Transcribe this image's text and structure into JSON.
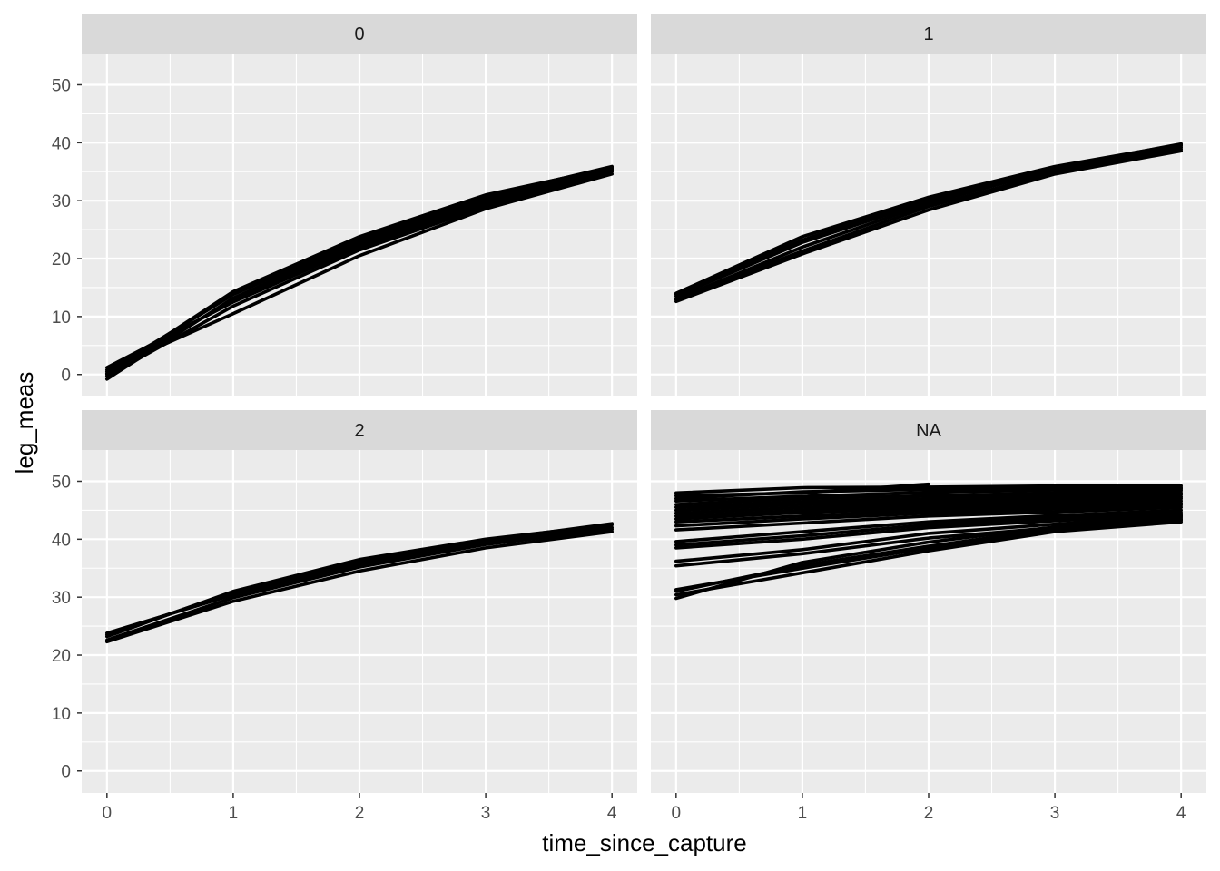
{
  "chart_data": {
    "type": "line",
    "facet_layout": "2x2 grid",
    "xlabel": "time_since_capture",
    "ylabel": "leg_meas",
    "xlim": [
      -0.2,
      4.2
    ],
    "ylim": [
      -3.8,
      55.4
    ],
    "x_ticks": [
      "0",
      "1",
      "2",
      "3",
      "4"
    ],
    "y_ticks": [
      "0",
      "10",
      "20",
      "30",
      "40",
      "50"
    ],
    "grid": true,
    "legend": "none",
    "colors": {
      "panel_background": "#ebebeb",
      "strip_background": "#d9d9d9",
      "grid_line": "#ffffff",
      "series_line": "#000000"
    },
    "facets": [
      {
        "label": "0",
        "series": [
          {
            "x": [
              0,
              1,
              2,
              3,
              4
            ],
            "y": [
              0.0,
              14.3,
              23.8,
              31.0,
              35.7
            ]
          },
          {
            "x": [
              0,
              1,
              2,
              3,
              4
            ],
            "y": [
              -0.8,
              13.2,
              22.9,
              30.2,
              35.4
            ]
          },
          {
            "x": [
              0,
              1,
              2,
              3,
              4
            ],
            "y": [
              1.2,
              12.5,
              22.0,
              29.5,
              35.2
            ]
          },
          {
            "x": [
              0,
              1,
              2,
              3,
              4
            ],
            "y": [
              0.5,
              13.8,
              23.3,
              30.7,
              35.9
            ]
          },
          {
            "x": [
              0,
              1,
              2,
              3,
              4
            ],
            "y": [
              -0.3,
              11.8,
              21.5,
              29.0,
              35.0
            ]
          },
          {
            "x": [
              0,
              1,
              2,
              3,
              4
            ],
            "y": [
              0.8,
              10.5,
              20.5,
              28.6,
              34.6
            ]
          },
          {
            "x": [
              0,
              1,
              2,
              3,
              4
            ],
            "y": [
              0.2,
              12.9,
              22.4,
              29.8,
              35.5
            ]
          }
        ]
      },
      {
        "label": "1",
        "series": [
          {
            "x": [
              0,
              1,
              2,
              3,
              4
            ],
            "y": [
              13.0,
              22.0,
              29.5,
              35.5,
              39.5
            ]
          },
          {
            "x": [
              0,
              1,
              2,
              3,
              4
            ],
            "y": [
              14.0,
              23.8,
              30.6,
              35.9,
              39.7
            ]
          },
          {
            "x": [
              0,
              1,
              2,
              3,
              4
            ],
            "y": [
              12.6,
              20.8,
              28.4,
              34.6,
              38.6
            ]
          },
          {
            "x": [
              0,
              1,
              2,
              3,
              4
            ],
            "y": [
              13.5,
              22.8,
              29.9,
              35.2,
              39.2
            ]
          },
          {
            "x": [
              0,
              1,
              2,
              3,
              4
            ],
            "y": [
              12.9,
              21.3,
              29.0,
              34.9,
              38.9
            ]
          },
          {
            "x": [
              0,
              1,
              2,
              3,
              4
            ],
            "y": [
              13.8,
              23.2,
              30.3,
              35.7,
              39.8
            ]
          }
        ]
      },
      {
        "label": "2",
        "series": [
          {
            "x": [
              0,
              1,
              2,
              3,
              4
            ],
            "y": [
              23.2,
              31.0,
              36.5,
              40.0,
              42.5
            ]
          },
          {
            "x": [
              0,
              1,
              2,
              3,
              4
            ],
            "y": [
              22.3,
              29.3,
              34.5,
              38.5,
              41.3
            ]
          },
          {
            "x": [
              0,
              1,
              2,
              3,
              4
            ],
            "y": [
              23.8,
              30.4,
              35.7,
              39.5,
              42.0
            ]
          },
          {
            "x": [
              0,
              1,
              2,
              3,
              4
            ],
            "y": [
              22.6,
              29.9,
              35.2,
              39.1,
              41.7
            ]
          },
          {
            "x": [
              0,
              1,
              2,
              3,
              4
            ],
            "y": [
              23.5,
              30.8,
              36.1,
              39.8,
              42.7
            ]
          }
        ]
      },
      {
        "label": "NA",
        "series": [
          {
            "x": [
              0,
              1,
              2,
              3,
              4
            ],
            "y": [
              48.0,
              48.9,
              49.0,
              49.2,
              49.2
            ]
          },
          {
            "x": [
              0,
              1,
              2
            ],
            "y": [
              47.5,
              48.0,
              49.5
            ]
          },
          {
            "x": [
              0,
              1,
              2,
              3,
              4
            ],
            "y": [
              47.0,
              48.2,
              48.6,
              48.9,
              48.9
            ]
          },
          {
            "x": [
              0,
              1,
              2,
              3,
              4
            ],
            "y": [
              46.6,
              47.4,
              48.1,
              48.5,
              48.7
            ]
          },
          {
            "x": [
              0,
              1,
              2,
              3,
              4
            ],
            "y": [
              46.0,
              47.0,
              47.5,
              48.0,
              48.4
            ]
          },
          {
            "x": [
              0,
              1,
              2,
              3,
              4
            ],
            "y": [
              45.5,
              46.5,
              47.0,
              47.6,
              48.0
            ]
          },
          {
            "x": [
              0,
              1,
              2,
              3,
              4
            ],
            "y": [
              45.0,
              46.0,
              46.6,
              47.2,
              47.7
            ]
          },
          {
            "x": [
              0,
              1,
              2,
              3,
              4
            ],
            "y": [
              44.5,
              45.5,
              46.2,
              46.9,
              47.3
            ]
          },
          {
            "x": [
              0,
              1,
              2,
              3,
              4
            ],
            "y": [
              44.0,
              45.0,
              45.8,
              46.4,
              47.0
            ]
          },
          {
            "x": [
              0,
              1,
              2,
              3,
              4
            ],
            "y": [
              43.5,
              44.6,
              45.4,
              46.0,
              46.6
            ]
          },
          {
            "x": [
              0,
              1,
              2,
              3,
              4
            ],
            "y": [
              43.0,
              44.0,
              45.0,
              45.6,
              46.2
            ]
          },
          {
            "x": [
              0,
              1,
              2,
              3,
              4
            ],
            "y": [
              42.3,
              43.5,
              44.5,
              45.2,
              45.9
            ]
          },
          {
            "x": [
              0,
              1,
              2,
              3,
              4
            ],
            "y": [
              41.6,
              42.8,
              44.0,
              44.7,
              45.5
            ]
          },
          {
            "x": [
              0,
              1,
              2,
              3,
              4
            ],
            "y": [
              39.6,
              41.3,
              43.0,
              44.1,
              45.0
            ]
          },
          {
            "x": [
              0,
              1,
              2,
              3,
              4
            ],
            "y": [
              39.0,
              40.6,
              42.5,
              43.6,
              44.6
            ]
          },
          {
            "x": [
              0,
              1,
              2,
              3,
              4
            ],
            "y": [
              38.5,
              40.0,
              42.0,
              43.2,
              44.2
            ]
          },
          {
            "x": [
              0,
              1,
              2,
              3,
              4
            ],
            "y": [
              36.2,
              38.2,
              41.0,
              42.6,
              44.0
            ]
          },
          {
            "x": [
              0,
              1,
              2,
              3,
              4
            ],
            "y": [
              35.4,
              37.5,
              40.2,
              42.0,
              43.4
            ]
          },
          {
            "x": [
              0,
              1,
              2,
              3,
              4
            ],
            "y": [
              31.3,
              35.0,
              38.5,
              41.5,
              43.3
            ]
          },
          {
            "x": [
              0,
              1,
              2,
              3,
              4
            ],
            "y": [
              30.4,
              34.2,
              38.0,
              41.3,
              43.0
            ]
          },
          {
            "x": [
              0,
              1,
              2,
              3,
              4
            ],
            "y": [
              29.8,
              36.0,
              39.5,
              42.1,
              43.8
            ]
          },
          {
            "x": [
              0,
              1,
              2,
              3,
              4
            ],
            "y": [
              31.0,
              35.5,
              38.8,
              41.8,
              43.5
            ]
          }
        ]
      }
    ]
  }
}
